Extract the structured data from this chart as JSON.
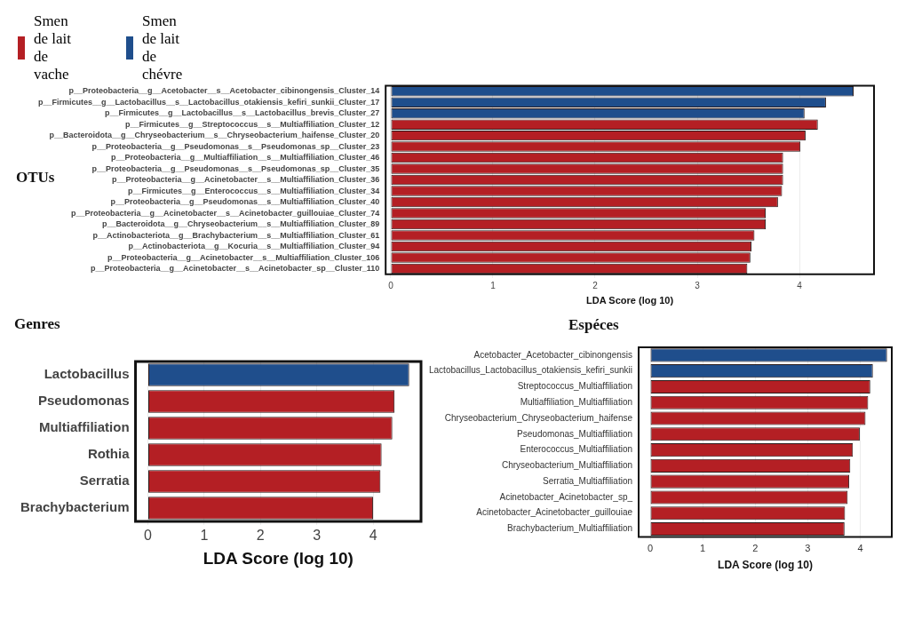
{
  "chart_data": [
    {
      "type": "bar",
      "title": "OTUs",
      "orientation": "horizontal",
      "stacked": true,
      "legend": "top left",
      "grid": "x",
      "xlabel": "LDA Score (log 10)",
      "xlim": [
        -0.05,
        4.73
      ],
      "xticks": [
        0,
        1,
        2,
        3,
        4
      ],
      "categories": [
        "p__Proteobacteria__g__Acetobacter__s__Acetobacter_cibinongensis_Cluster_14",
        "p__Firmicutes__g__Lactobacillus__s__Lactobacillus_otakiensis_kefiri_sunkii_Cluster_17",
        "p__Firmicutes__g__Lactobacillus__s__Lactobacillus_brevis_Cluster_27",
        "p__Firmicutes__g__Streptococcus__s__Multiaffiliation_Cluster_12",
        "p__Bacteroidota__g__Chryseobacterium__s__Chryseobacterium_haifense_Cluster_20",
        "p__Proteobacteria__g__Pseudomonas__s__Pseudomonas_sp__Cluster_23",
        "p__Proteobacteria__g__Multiaffiliation__s__Multiaffiliation_Cluster_46",
        "p__Proteobacteria__g__Pseudomonas__s__Pseudomonas_sp__Cluster_35",
        "p__Proteobacteria__g__Acinetobacter__s__Multiaffiliation_Cluster_36",
        "p__Firmicutes__g__Enterococcus__s__Multiaffiliation_Cluster_34",
        "p__Proteobacteria__g__Pseudomonas__s__Multiaffiliation_Cluster_40",
        "p__Proteobacteria__g__Acinetobacter__s__Acinetobacter_guillouiae_Cluster_74",
        "p__Bacteroidota__g__Chryseobacterium__s__Multiaffiliation_Cluster_89",
        "p__Actinobacteriota__g__Brachybacterium__s__Multiaffiliation_Cluster_61",
        "p__Actinobacteriota__g__Kocuria__s__Multiaffiliation_Cluster_94",
        "p__Proteobacteria__g__Acinetobacter__s__Multiaffiliation_Cluster_106",
        "p__Proteobacteria__g__Acinetobacter__s__Acinetobacter_sp__Cluster_110"
      ],
      "series": [
        {
          "name": "Smen de lait de vache",
          "color": "#b41f24",
          "values": [
            null,
            null,
            null,
            4.18,
            4.06,
            4.01,
            3.84,
            3.84,
            3.84,
            3.83,
            3.79,
            3.67,
            3.67,
            3.56,
            3.53,
            3.52,
            3.49
          ]
        },
        {
          "name": "Smen de lait de chévre",
          "color": "#1f4e8c",
          "values": [
            4.53,
            4.26,
            4.05,
            null,
            null,
            null,
            null,
            null,
            null,
            null,
            null,
            null,
            null,
            null,
            null,
            null,
            null
          ]
        }
      ]
    },
    {
      "type": "bar",
      "title": "Genres",
      "orientation": "horizontal",
      "grid": "x",
      "xlabel": "LDA Score (log 10)",
      "xlim": [
        -0.22,
        4.85
      ],
      "xticks": [
        0,
        1,
        2,
        3,
        4
      ],
      "categories": [
        "Lactobacillus",
        "Pseudomonas",
        "Multiaffiliation",
        "Rothia",
        "Serratia",
        "Brachybacterium"
      ],
      "values": [
        4.64,
        4.38,
        4.34,
        4.15,
        4.13,
        4.0
      ],
      "colors": [
        "#1f4e8c",
        "#b41f24",
        "#b41f24",
        "#b41f24",
        "#b41f24",
        "#b41f24"
      ]
    },
    {
      "type": "bar",
      "title": "Espéces",
      "orientation": "horizontal",
      "grid": "x",
      "xlabel": "LDA Score (log 10)",
      "xlim": [
        -0.22,
        4.6
      ],
      "xticks": [
        0,
        1,
        2,
        3,
        4
      ],
      "categories": [
        "Acetobacter_Acetobacter_cibinongensis",
        "Lactobacillus_Lactobacillus_otakiensis_kefiri_sunkii",
        "Streptococcus_Multiaffiliation",
        "Multiaffiliation_Multiaffiliation",
        "Chryseobacterium_Chryseobacterium_haifense",
        "Pseudomonas_Multiaffiliation",
        "Enterococcus_Multiaffiliation",
        "Chryseobacterium_Multiaffiliation",
        "Serratia_Multiaffiliation",
        "Acinetobacter_Acinetobacter_sp_",
        "Acinetobacter_Acinetobacter_guillouiae",
        "Brachybacterium_Multiaffiliation"
      ],
      "values": [
        4.51,
        4.24,
        4.19,
        4.15,
        4.1,
        3.99,
        3.86,
        3.81,
        3.79,
        3.76,
        3.71,
        3.7
      ],
      "colors": [
        "#1f4e8c",
        "#1f4e8c",
        "#b41f24",
        "#b41f24",
        "#b41f24",
        "#b41f24",
        "#b41f24",
        "#b41f24",
        "#b41f24",
        "#b41f24",
        "#b41f24",
        "#b41f24"
      ]
    }
  ]
}
